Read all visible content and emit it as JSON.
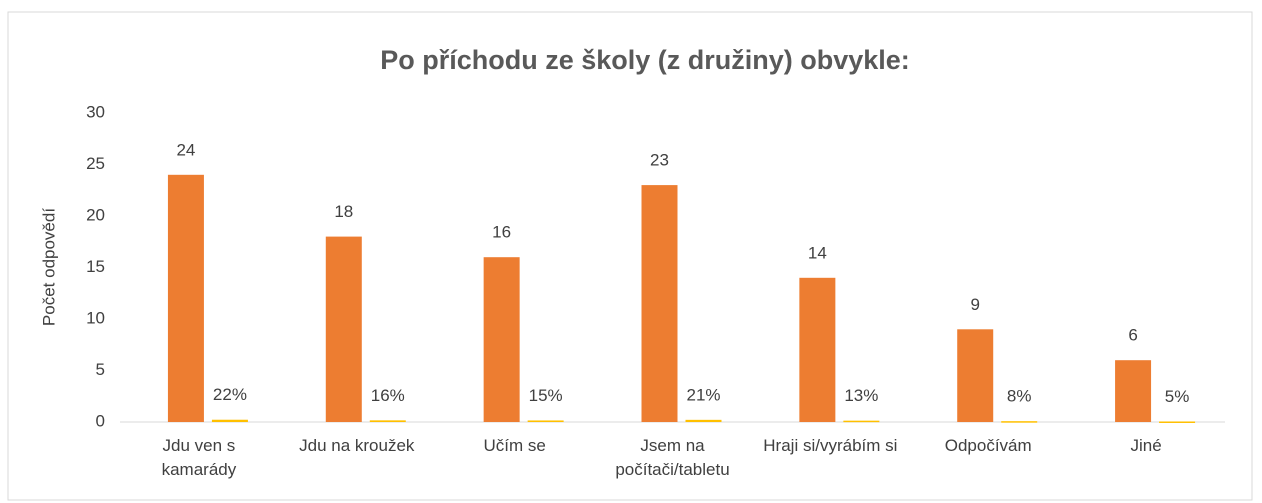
{
  "chart_data": {
    "type": "bar",
    "title": "Po příchodu ze školy (z družiny) obvykle:",
    "y_label": "Počet odpovědí",
    "categories": [
      "Jdu ven s kamarády",
      "Jdu na kroužek",
      "Učím se",
      "Jsem na počítači/tabletu",
      "Hraji si/vyrábím si",
      "Odpočívám",
      "Jiné"
    ],
    "series": [
      {
        "color": "#ed7d31",
        "values": [
          24,
          18,
          16,
          23,
          14,
          9,
          6
        ]
      },
      {
        "color": "#ffc000",
        "values": [
          0.22,
          0.16,
          0.15,
          0.21,
          0.13,
          0.08,
          0.05
        ],
        "value_labels": [
          "22%",
          "16%",
          "15%",
          "21%",
          "13%",
          "8%",
          "5%"
        ]
      }
    ],
    "ylim": [
      0,
      30
    ],
    "yticks": [
      0,
      5,
      10,
      15,
      20,
      25,
      30
    ],
    "grid": false
  }
}
